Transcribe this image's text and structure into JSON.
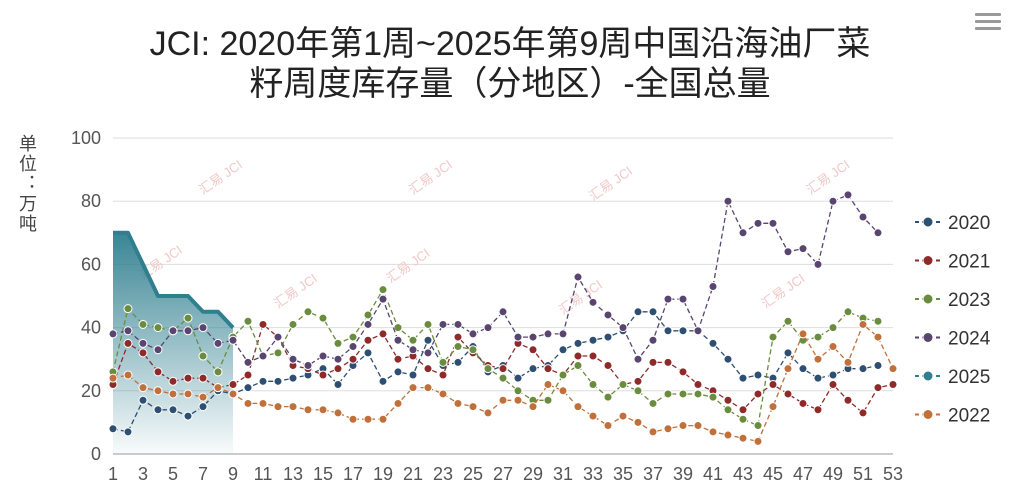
{
  "chart_data": {
    "type": "line",
    "title_line1": "JCI: 2020年第1周~2025年第9周中国沿海油厂菜",
    "title_line2": "籽周度库存量（分地区）-全国总量",
    "ylabel": "单位：万吨",
    "ylim": [
      0,
      100
    ],
    "yticks": [
      0,
      20,
      40,
      60,
      80,
      100
    ],
    "xticks": [
      1,
      3,
      5,
      7,
      9,
      11,
      13,
      15,
      17,
      19,
      21,
      23,
      25,
      27,
      29,
      31,
      33,
      35,
      37,
      39,
      41,
      43,
      45,
      47,
      49,
      51,
      53
    ],
    "x_range": [
      1,
      53
    ],
    "grid": true,
    "legend_position": "right",
    "watermark": "汇易 JCI",
    "series": [
      {
        "name": "2020",
        "color": "#2f4f72",
        "values": [
          8,
          7,
          17,
          14,
          14,
          12,
          15,
          20,
          19,
          21,
          23,
          23,
          24,
          25,
          27,
          22,
          28,
          32,
          23,
          26,
          25,
          36,
          28,
          29,
          34,
          26,
          28,
          24,
          27,
          28,
          33,
          35,
          36,
          37,
          39,
          45,
          45,
          39,
          39,
          39,
          35,
          30,
          24,
          25,
          24,
          32,
          27,
          24,
          25,
          27,
          27,
          28,
          null
        ]
      },
      {
        "name": "2021",
        "color": "#8e2a2a",
        "values": [
          22,
          35,
          32,
          26,
          23,
          24,
          24,
          21,
          22,
          25,
          41,
          37,
          28,
          27,
          25,
          27,
          30,
          36,
          38,
          30,
          31,
          27,
          25,
          37,
          32,
          28,
          27,
          35,
          33,
          27,
          25,
          31,
          31,
          28,
          22,
          23,
          29,
          29,
          26,
          22,
          20,
          17,
          14,
          19,
          22,
          19,
          16,
          14,
          22,
          17,
          13,
          21,
          22
        ]
      },
      {
        "name": "2023",
        "color": "#6a8c3e",
        "values": [
          26,
          46,
          41,
          40,
          39,
          43,
          31,
          26,
          37,
          42,
          31,
          32,
          41,
          45,
          43,
          35,
          37,
          44,
          52,
          40,
          36,
          41,
          29,
          34,
          33,
          27,
          24,
          20,
          17,
          17,
          25,
          28,
          22,
          18,
          22,
          20,
          16,
          19,
          19,
          19,
          18,
          14,
          11,
          9,
          37,
          42,
          36,
          37,
          40,
          45,
          43,
          42,
          null
        ]
      },
      {
        "name": "2024",
        "color": "#5a4470",
        "values": [
          38,
          39,
          35,
          33,
          39,
          39,
          40,
          35,
          36,
          29,
          31,
          37,
          30,
          28,
          31,
          30,
          34,
          41,
          49,
          36,
          33,
          32,
          41,
          41,
          38,
          40,
          45,
          37,
          37,
          38,
          38,
          56,
          48,
          44,
          40,
          30,
          36,
          49,
          49,
          39,
          53,
          80,
          70,
          73,
          73,
          64,
          65,
          60,
          80,
          82,
          75,
          70,
          null
        ]
      },
      {
        "name": "2025",
        "color": "#2f7f8f",
        "values": [
          70,
          70,
          60,
          50,
          50,
          50,
          45,
          45,
          40,
          null,
          null,
          null,
          null,
          null,
          null,
          null,
          null,
          null,
          null,
          null,
          null,
          null,
          null,
          null,
          null,
          null,
          null,
          null,
          null,
          null,
          null,
          null,
          null,
          null,
          null,
          null,
          null,
          null,
          null,
          null,
          null,
          null,
          null,
          null,
          null,
          null,
          null,
          null,
          null,
          null,
          null,
          null,
          null
        ]
      },
      {
        "name": "2022",
        "color": "#c0703a",
        "values": [
          24,
          25,
          21,
          20,
          19,
          19,
          18,
          21,
          19,
          16,
          16,
          15,
          15,
          14,
          14,
          13,
          11,
          11,
          11,
          16,
          21,
          21,
          19,
          16,
          15,
          13,
          17,
          17,
          15,
          22,
          20,
          15,
          12,
          9,
          12,
          10,
          7,
          8,
          9,
          9,
          7,
          6,
          5,
          4,
          15,
          27,
          38,
          30,
          34,
          29,
          41,
          37,
          27
        ]
      }
    ]
  },
  "ui": {
    "menu_icon": "hamburger-menu-icon"
  }
}
